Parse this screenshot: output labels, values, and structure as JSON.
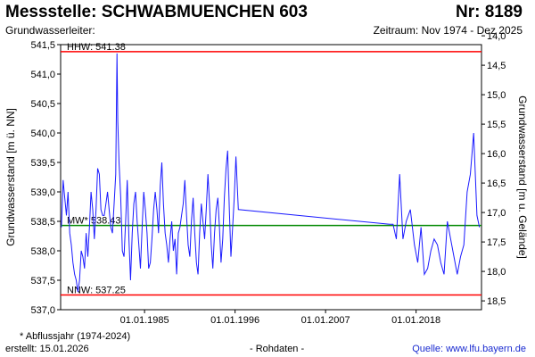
{
  "header": {
    "title": "Messstelle: SCHWABMUENCHEN 603",
    "nr": "Nr: 8189",
    "aquifer": "Grundwasserleiter:",
    "period": "Zeitraum: Nov 1974 - Dez 2025"
  },
  "footer": {
    "footnote": "* Abflussjahr (1974-2024)",
    "created": "erstellt:  15.01.2026",
    "rawdata": "- Rohdaten -",
    "source": "Quelle:  www.lfu.bayern.de"
  },
  "colors": {
    "series": "#1a1aff",
    "hhw": "#ff0000",
    "nnw": "#ff0000",
    "mw": "#008800",
    "source_link": "#1a2bd0"
  },
  "chart_data": {
    "type": "line",
    "title": "",
    "ylabel": "Grundwasserstand [m ü. NN]",
    "ylabel_right": "Grundwasserstand [m u. Gelände]",
    "ylim": [
      537.0,
      541.5
    ],
    "ylim_right": [
      18.65,
      14.15
    ],
    "xlim": [
      1974.8,
      2025.95
    ],
    "y_ticks": [
      "537,0",
      "537,5",
      "538,0",
      "538,5",
      "539,0",
      "539,5",
      "540,0",
      "540,5",
      "541,0",
      "541,5"
    ],
    "y_ticks_right": [
      "18,5",
      "18,0",
      "17,5",
      "17,0",
      "16,5",
      "16,0",
      "15,5",
      "15,0",
      "14,5",
      "14,0"
    ],
    "x_ticks": [
      {
        "label": "01.01.1985",
        "x": 1985.0
      },
      {
        "label": "01.01.1996",
        "x": 1996.0
      },
      {
        "label": "01.01.2007",
        "x": 2007.0
      },
      {
        "label": "01.01.2018",
        "x": 2018.0
      }
    ],
    "reference_lines": [
      {
        "label": "HHW: 541.38",
        "value": 541.38,
        "color": "#ff0000"
      },
      {
        "label": "MW* 538.43",
        "value": 538.43,
        "color": "#008800"
      },
      {
        "label": "NNW: 537.25",
        "value": 537.25,
        "color": "#ff0000"
      }
    ],
    "series": [
      {
        "x": [
          1974.9,
          1975.1,
          1975.3,
          1975.5,
          1975.7,
          1975.9,
          1976.1,
          1976.3,
          1976.5,
          1976.7,
          1976.9,
          1977.1,
          1977.3,
          1977.5,
          1977.7,
          1977.9,
          1978.1,
          1978.3,
          1978.5,
          1978.7,
          1978.9,
          1979.1,
          1979.3,
          1979.5,
          1979.7,
          1979.9,
          1980.1,
          1980.3,
          1980.5,
          1980.7,
          1980.9,
          1981.1,
          1981.3,
          1981.5,
          1981.65,
          1981.75,
          1981.9,
          1982.1,
          1982.3,
          1982.5,
          1982.7,
          1982.9,
          1983.1,
          1983.3,
          1983.5,
          1983.7,
          1983.9,
          1984.1,
          1984.3,
          1984.5,
          1984.7,
          1984.9,
          1985.1,
          1985.3,
          1985.5,
          1985.7,
          1985.9,
          1986.1,
          1986.3,
          1986.5,
          1986.7,
          1986.9,
          1987.1,
          1987.3,
          1987.5,
          1987.7,
          1987.9,
          1988.1,
          1988.3,
          1988.5,
          1988.7,
          1988.9,
          1989.1,
          1989.3,
          1989.5,
          1989.7,
          1989.9,
          1990.1,
          1990.3,
          1990.5,
          1990.7,
          1990.9,
          1991.1,
          1991.3,
          1991.5,
          1991.7,
          1991.9,
          1992.1,
          1992.3,
          1992.5,
          1992.7,
          1992.9,
          1993.1,
          1993.3,
          1993.5,
          1993.7,
          1993.9,
          1994.1,
          1994.3,
          1994.5,
          1994.7,
          1994.9,
          1995.1,
          1995.3,
          1995.5,
          1995.7,
          1995.9,
          1996.1,
          1996.4,
          2014.8,
          2015.2,
          2015.6,
          2016.0,
          2016.4,
          2016.8,
          2017.3,
          2017.8,
          2018.2,
          2018.6,
          2019.0,
          2019.4,
          2019.8,
          2020.2,
          2020.6,
          2021.0,
          2021.4,
          2021.8,
          2022.2,
          2022.6,
          2023.0,
          2023.4,
          2023.8,
          2024.2,
          2024.6,
          2025.0,
          2025.4,
          2025.7
        ],
        "values": [
          538.4,
          539.2,
          538.9,
          538.6,
          539.0,
          538.3,
          538.1,
          537.8,
          537.6,
          537.5,
          537.3,
          537.5,
          538.0,
          537.9,
          537.7,
          538.3,
          537.9,
          538.4,
          539.0,
          538.7,
          538.2,
          538.7,
          539.4,
          539.3,
          538.7,
          538.6,
          538.6,
          538.8,
          539.0,
          538.7,
          538.4,
          538.3,
          538.8,
          539.3,
          541.35,
          540.2,
          539.5,
          538.9,
          538.0,
          537.9,
          538.5,
          539.2,
          538.2,
          537.5,
          538.3,
          538.8,
          539.0,
          538.5,
          538.1,
          537.7,
          538.4,
          539.0,
          538.7,
          538.3,
          537.7,
          537.8,
          538.2,
          538.7,
          539.0,
          538.7,
          538.3,
          539.1,
          539.5,
          538.8,
          538.3,
          538.1,
          537.8,
          538.2,
          538.5,
          538.0,
          538.2,
          537.6,
          538.3,
          538.4,
          538.6,
          538.8,
          539.2,
          538.6,
          538.1,
          537.9,
          538.5,
          538.9,
          538.3,
          537.8,
          537.6,
          538.3,
          538.8,
          538.5,
          538.2,
          538.7,
          539.3,
          538.8,
          538.1,
          537.7,
          538.3,
          538.7,
          538.9,
          538.4,
          537.8,
          538.2,
          538.9,
          539.4,
          539.7,
          538.7,
          537.9,
          538.4,
          538.9,
          539.6,
          538.7,
          538.45,
          538.45,
          538.2,
          539.3,
          538.2,
          538.5,
          538.7,
          538.1,
          537.8,
          538.4,
          537.6,
          537.7,
          538.0,
          538.2,
          538.1,
          537.8,
          537.6,
          538.5,
          538.2,
          537.9,
          537.6,
          537.9,
          538.1,
          539.0,
          539.3,
          540.0,
          538.6,
          538.4
        ]
      }
    ]
  }
}
